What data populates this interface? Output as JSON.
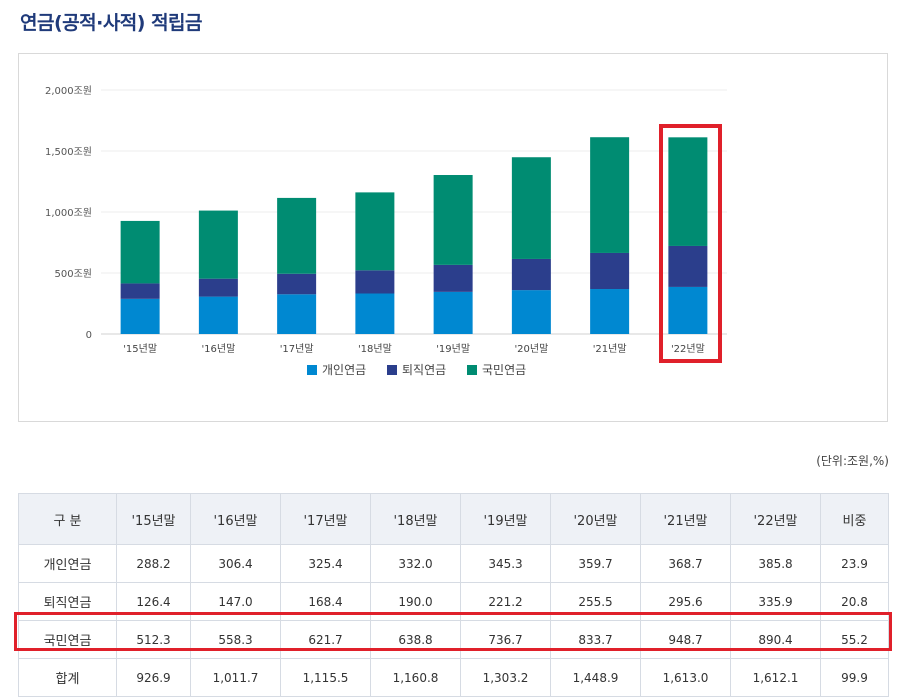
{
  "page": {
    "title": "연금(공적·사적) 적립금"
  },
  "chart_data": {
    "type": "bar",
    "stacked": true,
    "categories": [
      "'15년말",
      "'16년말",
      "'17년말",
      "'18년말",
      "'19년말",
      "'20년말",
      "'21년말",
      "'22년말"
    ],
    "series": [
      {
        "name": "개인연금",
        "color": "#0088d1",
        "values": [
          288.2,
          306.4,
          325.4,
          332.0,
          345.3,
          359.7,
          368.7,
          385.8
        ]
      },
      {
        "name": "퇴직연금",
        "color": "#2b3e8c",
        "values": [
          126.4,
          147.0,
          168.4,
          190.0,
          221.2,
          255.5,
          295.6,
          335.9
        ]
      },
      {
        "name": "국민연금",
        "color": "#008c72",
        "values": [
          512.3,
          558.3,
          621.7,
          638.8,
          736.7,
          833.7,
          948.7,
          890.4
        ]
      }
    ],
    "y_ticks": [
      "0",
      "500조원",
      "1,000조원",
      "1,500조원",
      "2,000조원"
    ],
    "ylim": [
      0,
      2000
    ],
    "grid": true,
    "legend_position": "bottom",
    "highlighted_category": "'22년말"
  },
  "table": {
    "unit_note": "(단위:조원,%)",
    "headers": [
      "구 분",
      "'15년말",
      "'16년말",
      "'17년말",
      "'18년말",
      "'19년말",
      "'20년말",
      "'21년말",
      "'22년말",
      "비중"
    ],
    "rows": [
      [
        "개인연금",
        "288.2",
        "306.4",
        "325.4",
        "332.0",
        "345.3",
        "359.7",
        "368.7",
        "385.8",
        "23.9"
      ],
      [
        "퇴직연금",
        "126.4",
        "147.0",
        "168.4",
        "190.0",
        "221.2",
        "255.5",
        "295.6",
        "335.9",
        "20.8"
      ],
      [
        "국민연금",
        "512.3",
        "558.3",
        "621.7",
        "638.8",
        "736.7",
        "833.7",
        "948.7",
        "890.4",
        "55.2"
      ],
      [
        "합계",
        "926.9",
        "1,011.7",
        "1,115.5",
        "1,160.8",
        "1,303.2",
        "1,448.9",
        "1,613.0",
        "1,612.1",
        "99.9"
      ]
    ],
    "highlighted_row": "국민연금",
    "highlight_color": "#e0202a"
  }
}
